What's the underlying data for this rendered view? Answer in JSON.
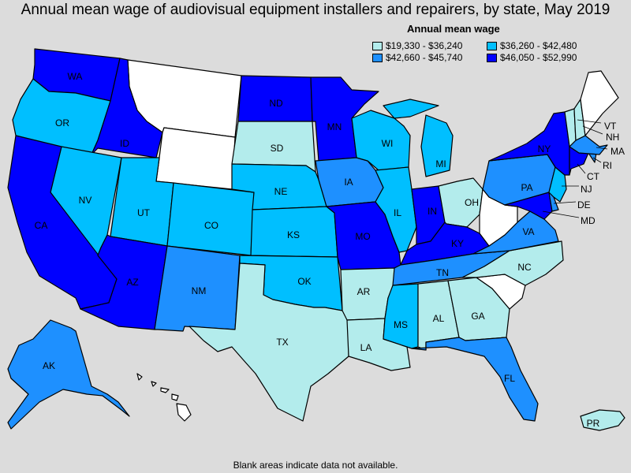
{
  "title": "Annual mean wage of audiovisual equipment installers and repairers, by state, May 2019",
  "legend": {
    "title": "Annual mean wage",
    "bins": [
      {
        "label": "$19,330 - $36,240",
        "color": "#b3ecec"
      },
      {
        "label": "$36,260 - $42,480",
        "color": "#00bfff"
      },
      {
        "label": "$42,660 - $45,740",
        "color": "#1e90ff"
      },
      {
        "label": "$46,050 - $52,990",
        "color": "#0000ff"
      }
    ],
    "no_data_color": "#ffffff"
  },
  "footnote": "Blank areas indicate data not available.",
  "states": [
    {
      "abbr": "WA",
      "bin": 3
    },
    {
      "abbr": "OR",
      "bin": 1
    },
    {
      "abbr": "CA",
      "bin": 3
    },
    {
      "abbr": "ID",
      "bin": 3
    },
    {
      "abbr": "NV",
      "bin": 1
    },
    {
      "abbr": "MT",
      "bin": null
    },
    {
      "abbr": "WY",
      "bin": null
    },
    {
      "abbr": "UT",
      "bin": 1
    },
    {
      "abbr": "AZ",
      "bin": 3
    },
    {
      "abbr": "CO",
      "bin": 1
    },
    {
      "abbr": "NM",
      "bin": 2
    },
    {
      "abbr": "ND",
      "bin": 3
    },
    {
      "abbr": "SD",
      "bin": 0
    },
    {
      "abbr": "NE",
      "bin": 1
    },
    {
      "abbr": "KS",
      "bin": 1
    },
    {
      "abbr": "OK",
      "bin": 1
    },
    {
      "abbr": "TX",
      "bin": 0
    },
    {
      "abbr": "MN",
      "bin": 3
    },
    {
      "abbr": "IA",
      "bin": 2
    },
    {
      "abbr": "MO",
      "bin": 3
    },
    {
      "abbr": "AR",
      "bin": 0
    },
    {
      "abbr": "LA",
      "bin": 0
    },
    {
      "abbr": "WI",
      "bin": 1
    },
    {
      "abbr": "IL",
      "bin": 1
    },
    {
      "abbr": "MI",
      "bin": 1
    },
    {
      "abbr": "IN",
      "bin": 3
    },
    {
      "abbr": "OH",
      "bin": 0
    },
    {
      "abbr": "KY",
      "bin": 3
    },
    {
      "abbr": "TN",
      "bin": 2
    },
    {
      "abbr": "MS",
      "bin": 1
    },
    {
      "abbr": "AL",
      "bin": 0
    },
    {
      "abbr": "GA",
      "bin": 0
    },
    {
      "abbr": "FL",
      "bin": 2
    },
    {
      "abbr": "SC",
      "bin": null
    },
    {
      "abbr": "NC",
      "bin": 0
    },
    {
      "abbr": "VA",
      "bin": 2
    },
    {
      "abbr": "WV",
      "bin": null
    },
    {
      "abbr": "PA",
      "bin": 2
    },
    {
      "abbr": "NY",
      "bin": 3
    },
    {
      "abbr": "VT",
      "bin": 0
    },
    {
      "abbr": "NH",
      "bin": 0
    },
    {
      "abbr": "ME",
      "bin": null
    },
    {
      "abbr": "MA",
      "bin": 2
    },
    {
      "abbr": "RI",
      "bin": 2
    },
    {
      "abbr": "CT",
      "bin": 3
    },
    {
      "abbr": "NJ",
      "bin": 1
    },
    {
      "abbr": "DE",
      "bin": 2
    },
    {
      "abbr": "MD",
      "bin": 3
    },
    {
      "abbr": "AK",
      "bin": 2
    },
    {
      "abbr": "HI",
      "bin": null
    },
    {
      "abbr": "PR",
      "bin": 0
    }
  ]
}
